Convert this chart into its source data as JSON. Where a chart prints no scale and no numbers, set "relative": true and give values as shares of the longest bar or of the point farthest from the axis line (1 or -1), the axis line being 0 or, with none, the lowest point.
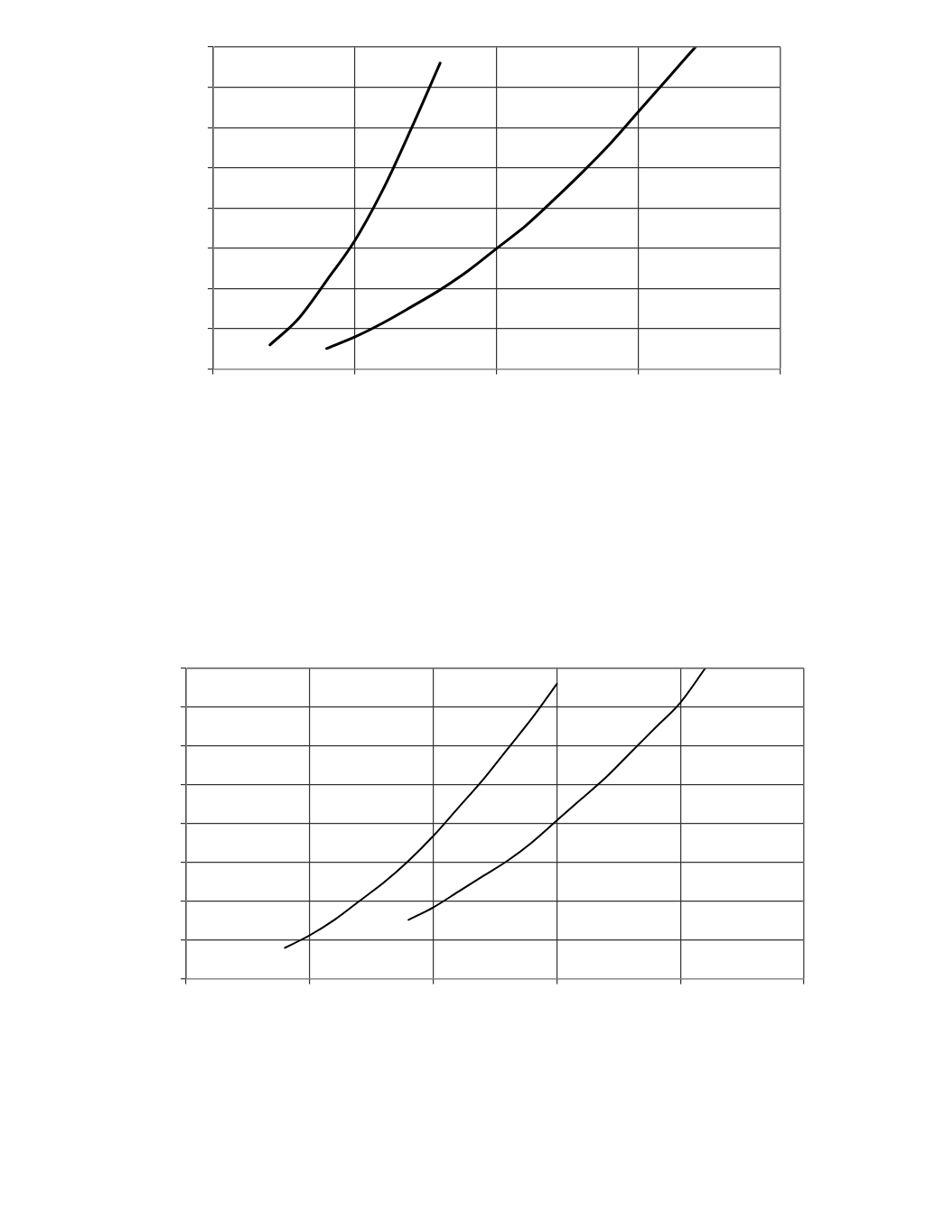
{
  "chart_data": [
    {
      "type": "line",
      "relative": true,
      "grid": true,
      "categories": [
        null,
        null,
        null,
        null,
        null,
        null,
        null,
        null,
        null,
        null,
        null,
        null,
        null,
        null,
        null,
        null,
        null,
        null,
        null,
        null,
        null
      ],
      "series": [
        {
          "color": "#000000",
          "values": [
            null,
            null,
            0.075,
            0.156,
            0.275,
            0.4,
            0.56,
            0.75,
            0.95,
            null,
            null,
            null,
            null,
            null,
            null,
            null,
            null,
            null,
            null,
            null,
            null
          ]
        },
        {
          "color": "#000000",
          "values": [
            null,
            null,
            null,
            null,
            0.064,
            0.1,
            0.144,
            0.194,
            0.246,
            0.306,
            0.375,
            0.444,
            0.525,
            0.61,
            0.7,
            0.8,
            0.9,
            1,
            null,
            null,
            null
          ]
        }
      ]
    },
    {
      "type": "line",
      "relative": true,
      "grid": true,
      "categories": [
        null,
        null,
        null,
        null,
        null,
        null,
        null,
        null,
        null,
        null,
        null,
        null,
        null,
        null,
        null,
        null,
        null,
        null,
        null,
        null,
        null,
        null,
        null,
        null,
        null,
        null
      ],
      "series": [
        {
          "color": "#000000",
          "values": [
            null,
            null,
            null,
            null,
            0.1,
            0.14,
            0.19,
            0.25,
            0.31,
            0.38,
            0.46,
            0.55,
            0.64,
            0.74,
            0.84,
            0.95,
            null,
            null,
            null,
            null,
            null,
            null,
            null,
            null,
            null,
            null
          ]
        },
        {
          "color": "#000000",
          "values": [
            null,
            null,
            null,
            null,
            null,
            null,
            null,
            null,
            null,
            0.19,
            0.23,
            0.28,
            0.33,
            0.38,
            0.44,
            0.51,
            0.58,
            0.65,
            0.73,
            0.81,
            0.89,
            1,
            null,
            null,
            null,
            null
          ]
        }
      ]
    }
  ]
}
